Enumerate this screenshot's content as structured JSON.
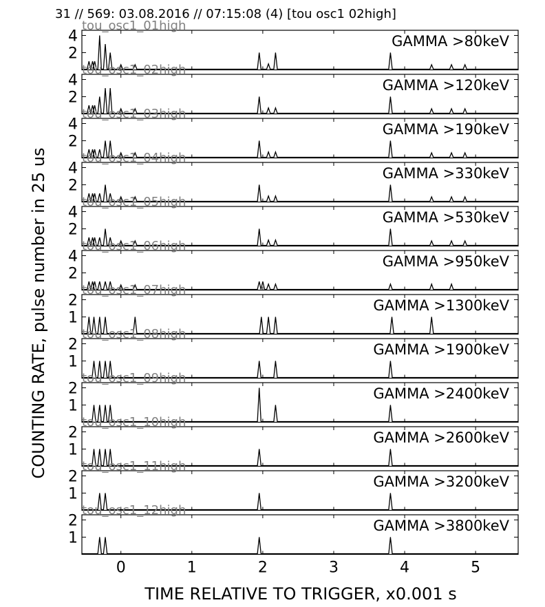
{
  "header": {
    "title": "31 // 569:   03.08.2016 // 07:15:08 (4)  [tou osc1 02high]"
  },
  "chart_data": {
    "type": "line",
    "xlabel": "TIME RELATIVE TO TRIGGER,   x0.001 s",
    "ylabel": "COUNTING RATE,    pulse number in 25 us",
    "xlim": [
      -0.55,
      5.6
    ],
    "x_ticks": [
      "0",
      "1",
      "2",
      "3",
      "4",
      "5"
    ],
    "panels": [
      {
        "source": "tou_osc1_01high",
        "label": "GAMMA >80keV",
        "ylim": [
          0,
          4.6
        ],
        "y_ticks": [
          "2",
          "4"
        ],
        "peaks": [
          [
            -0.45,
            1
          ],
          [
            -0.4,
            1
          ],
          [
            -0.37,
            1
          ],
          [
            -0.3,
            4
          ],
          [
            -0.22,
            3
          ],
          [
            -0.15,
            2
          ],
          [
            0.0,
            0.6
          ],
          [
            0.2,
            0.6
          ],
          [
            1.95,
            2
          ],
          [
            2.08,
            0.7
          ],
          [
            2.18,
            2
          ],
          [
            3.8,
            2
          ],
          [
            4.38,
            0.6
          ],
          [
            4.66,
            0.6
          ],
          [
            4.85,
            0.6
          ]
        ]
      },
      {
        "source": "tou_osc1_02high",
        "label": "GAMMA >120keV",
        "ylim": [
          0,
          4.6
        ],
        "y_ticks": [
          "2",
          "4"
        ],
        "peaks": [
          [
            -0.45,
            1
          ],
          [
            -0.4,
            1
          ],
          [
            -0.37,
            1
          ],
          [
            -0.3,
            2
          ],
          [
            -0.22,
            3
          ],
          [
            -0.15,
            3
          ],
          [
            0.0,
            0.6
          ],
          [
            0.2,
            0.6
          ],
          [
            1.95,
            2
          ],
          [
            2.08,
            0.7
          ],
          [
            2.18,
            0.7
          ],
          [
            3.8,
            2
          ],
          [
            4.38,
            0.6
          ],
          [
            4.66,
            0.6
          ],
          [
            4.85,
            0.6
          ]
        ]
      },
      {
        "source": "tou_osc1_03high",
        "label": "GAMMA >190keV",
        "ylim": [
          0,
          4.6
        ],
        "y_ticks": [
          "2",
          "4"
        ],
        "peaks": [
          [
            -0.45,
            1
          ],
          [
            -0.4,
            1
          ],
          [
            -0.37,
            1
          ],
          [
            -0.3,
            1
          ],
          [
            -0.22,
            2
          ],
          [
            -0.15,
            2
          ],
          [
            0.0,
            0.6
          ],
          [
            0.2,
            0.6
          ],
          [
            1.95,
            2
          ],
          [
            2.08,
            0.7
          ],
          [
            2.18,
            0.7
          ],
          [
            3.8,
            2
          ],
          [
            4.38,
            0.6
          ],
          [
            4.66,
            0.6
          ],
          [
            4.85,
            0.6
          ]
        ]
      },
      {
        "source": "tou_osc1_04high",
        "label": "GAMMA >330keV",
        "ylim": [
          0,
          4.6
        ],
        "y_ticks": [
          "2",
          "4"
        ],
        "peaks": [
          [
            -0.45,
            1
          ],
          [
            -0.4,
            1
          ],
          [
            -0.37,
            1
          ],
          [
            -0.3,
            1
          ],
          [
            -0.22,
            2
          ],
          [
            -0.15,
            1
          ],
          [
            0.0,
            0.6
          ],
          [
            0.2,
            0.6
          ],
          [
            1.95,
            2
          ],
          [
            2.08,
            0.7
          ],
          [
            2.18,
            0.7
          ],
          [
            3.8,
            2
          ],
          [
            4.38,
            0.6
          ],
          [
            4.66,
            0.6
          ],
          [
            4.85,
            0.6
          ]
        ]
      },
      {
        "source": "tou_osc1_05high",
        "label": "GAMMA >530keV",
        "ylim": [
          0,
          4.6
        ],
        "y_ticks": [
          "2",
          "4"
        ],
        "peaks": [
          [
            -0.45,
            1
          ],
          [
            -0.4,
            1
          ],
          [
            -0.37,
            1
          ],
          [
            -0.3,
            1
          ],
          [
            -0.22,
            2
          ],
          [
            -0.15,
            1
          ],
          [
            0.0,
            0.6
          ],
          [
            0.2,
            0.6
          ],
          [
            1.95,
            2
          ],
          [
            2.08,
            0.7
          ],
          [
            2.18,
            0.7
          ],
          [
            3.8,
            2
          ],
          [
            4.38,
            0.6
          ],
          [
            4.66,
            0.6
          ],
          [
            4.85,
            0.6
          ]
        ]
      },
      {
        "source": "tou_osc1_06high",
        "label": "GAMMA >950keV",
        "ylim": [
          0,
          4.6
        ],
        "y_ticks": [
          "2",
          "4"
        ],
        "peaks": [
          [
            -0.45,
            1
          ],
          [
            -0.4,
            1
          ],
          [
            -0.37,
            1
          ],
          [
            -0.3,
            1
          ],
          [
            -0.22,
            1
          ],
          [
            -0.15,
            1
          ],
          [
            0.0,
            0.6
          ],
          [
            0.2,
            0.6
          ],
          [
            1.95,
            1
          ],
          [
            2.0,
            1
          ],
          [
            2.08,
            0.7
          ],
          [
            2.18,
            0.7
          ],
          [
            3.8,
            0.7
          ],
          [
            4.38,
            0.7
          ],
          [
            4.66,
            0.7
          ]
        ]
      },
      {
        "source": "tou_osc1_07high",
        "label": "GAMMA >1300keV",
        "ylim": [
          0,
          2.3
        ],
        "y_ticks": [
          "1",
          "2"
        ],
        "peaks": [
          [
            -0.45,
            1
          ],
          [
            -0.38,
            1
          ],
          [
            -0.3,
            1
          ],
          [
            -0.22,
            1
          ],
          [
            0.2,
            1
          ],
          [
            1.98,
            1
          ],
          [
            2.08,
            1
          ],
          [
            2.18,
            1
          ],
          [
            3.82,
            1
          ],
          [
            4.38,
            1
          ]
        ]
      },
      {
        "source": "tou_osc1_08high",
        "label": "GAMMA >1900keV",
        "ylim": [
          0,
          2.3
        ],
        "y_ticks": [
          "1",
          "2"
        ],
        "peaks": [
          [
            -0.38,
            1
          ],
          [
            -0.3,
            1
          ],
          [
            -0.22,
            1
          ],
          [
            -0.15,
            1
          ],
          [
            1.95,
            1
          ],
          [
            2.18,
            1
          ],
          [
            3.8,
            1
          ]
        ]
      },
      {
        "source": "tou_osc1_09high",
        "label": "GAMMA >2400keV",
        "ylim": [
          0,
          2.3
        ],
        "y_ticks": [
          "1",
          "2"
        ],
        "peaks": [
          [
            -0.38,
            1
          ],
          [
            -0.3,
            1
          ],
          [
            -0.22,
            1
          ],
          [
            -0.15,
            1
          ],
          [
            1.95,
            2
          ],
          [
            2.18,
            1
          ],
          [
            3.8,
            1
          ]
        ]
      },
      {
        "source": "tou_osc1_10high",
        "label": "GAMMA >2600keV",
        "ylim": [
          0,
          2.3
        ],
        "y_ticks": [
          "1",
          "2"
        ],
        "peaks": [
          [
            -0.38,
            1
          ],
          [
            -0.3,
            1
          ],
          [
            -0.22,
            1
          ],
          [
            -0.15,
            1
          ],
          [
            1.95,
            1
          ],
          [
            3.8,
            1
          ]
        ]
      },
      {
        "source": "tou_osc1_11high",
        "label": "GAMMA >3200keV",
        "ylim": [
          0,
          2.3
        ],
        "y_ticks": [
          "1",
          "2"
        ],
        "peaks": [
          [
            -0.3,
            1
          ],
          [
            -0.22,
            1
          ],
          [
            1.95,
            1
          ],
          [
            3.8,
            1
          ]
        ]
      },
      {
        "source": "tou_osc1_12high",
        "label": "GAMMA >3800keV",
        "ylim": [
          0,
          2.3
        ],
        "y_ticks": [
          "1",
          "2"
        ],
        "peaks": [
          [
            -0.3,
            1
          ],
          [
            -0.22,
            1
          ],
          [
            1.95,
            1
          ],
          [
            3.8,
            1
          ]
        ]
      }
    ]
  }
}
